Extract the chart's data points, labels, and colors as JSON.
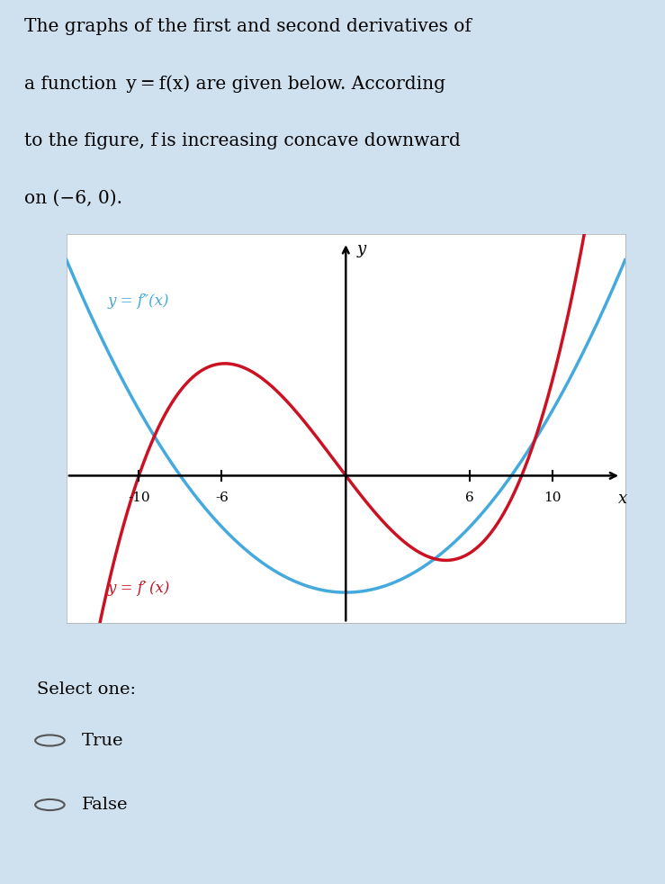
{
  "page_bg": "#cfe0ef",
  "plot_bg": "#ffffff",
  "fp_color": "#cc1122",
  "fpp_color": "#44aadd",
  "title_lines": [
    "The graphs of the first and second derivatives of",
    "a function  y = f(x) are given below. According",
    "to the figure, f is increasing concave downward",
    "on (−6, 0)."
  ],
  "xlim": [
    -13.5,
    13.5
  ],
  "ylim": [
    -5.5,
    9.0
  ],
  "x_ticks": [
    -10,
    -6,
    6,
    10
  ],
  "tick_labels": [
    "-10",
    "-6",
    "6",
    "10"
  ],
  "xlabel": "x",
  "ylabel": "y",
  "fp_label": "y = f′ (x)",
  "fpp_label": "y = f″(x)",
  "select_text": "Select one:",
  "option_true": "True",
  "option_false": "False",
  "fpp_a": 0.068,
  "fpp_root": 8.0,
  "fp_coeff": 0.012,
  "fp_roots": [
    -10.0,
    0.0,
    8.5
  ]
}
